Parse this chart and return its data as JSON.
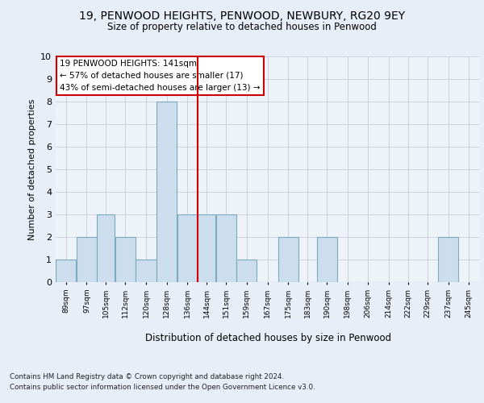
{
  "title1": "19, PENWOOD HEIGHTS, PENWOOD, NEWBURY, RG20 9EY",
  "title2": "Size of property relative to detached houses in Penwood",
  "xlabel": "Distribution of detached houses by size in Penwood",
  "ylabel": "Number of detached properties",
  "bin_labels": [
    "89sqm",
    "97sqm",
    "105sqm",
    "112sqm",
    "120sqm",
    "128sqm",
    "136sqm",
    "144sqm",
    "151sqm",
    "159sqm",
    "167sqm",
    "175sqm",
    "183sqm",
    "190sqm",
    "198sqm",
    "206sqm",
    "214sqm",
    "222sqm",
    "229sqm",
    "237sqm",
    "245sqm"
  ],
  "bar_heights": [
    1,
    2,
    3,
    2,
    1,
    8,
    3,
    3,
    3,
    1,
    0,
    2,
    0,
    2,
    0,
    0,
    0,
    0,
    0,
    2,
    0
  ],
  "bar_color": "#ccdded",
  "bar_edge_color": "#7aaabb",
  "annotation_line1": "19 PENWOOD HEIGHTS: 141sqm",
  "annotation_line2": "← 57% of detached houses are smaller (17)",
  "annotation_line3": "43% of semi-detached houses are larger (13) →",
  "annotation_box_color": "#ffffff",
  "annotation_box_edge": "#cc0000",
  "vline_color": "#cc0000",
  "ylim": [
    0,
    10
  ],
  "yticks": [
    0,
    1,
    2,
    3,
    4,
    5,
    6,
    7,
    8,
    9,
    10
  ],
  "footnote1": "Contains HM Land Registry data © Crown copyright and database right 2024.",
  "footnote2": "Contains public sector information licensed under the Open Government Licence v3.0.",
  "bg_color": "#e8eef8",
  "plot_bg_color": "#eef3fa",
  "grid_color": "#c8ccd8",
  "bin_edges": [
    85,
    93,
    101,
    108,
    116,
    124,
    132,
    140,
    147,
    155,
    163,
    171,
    179,
    186,
    194,
    202,
    210,
    218,
    225,
    233,
    241,
    249
  ]
}
